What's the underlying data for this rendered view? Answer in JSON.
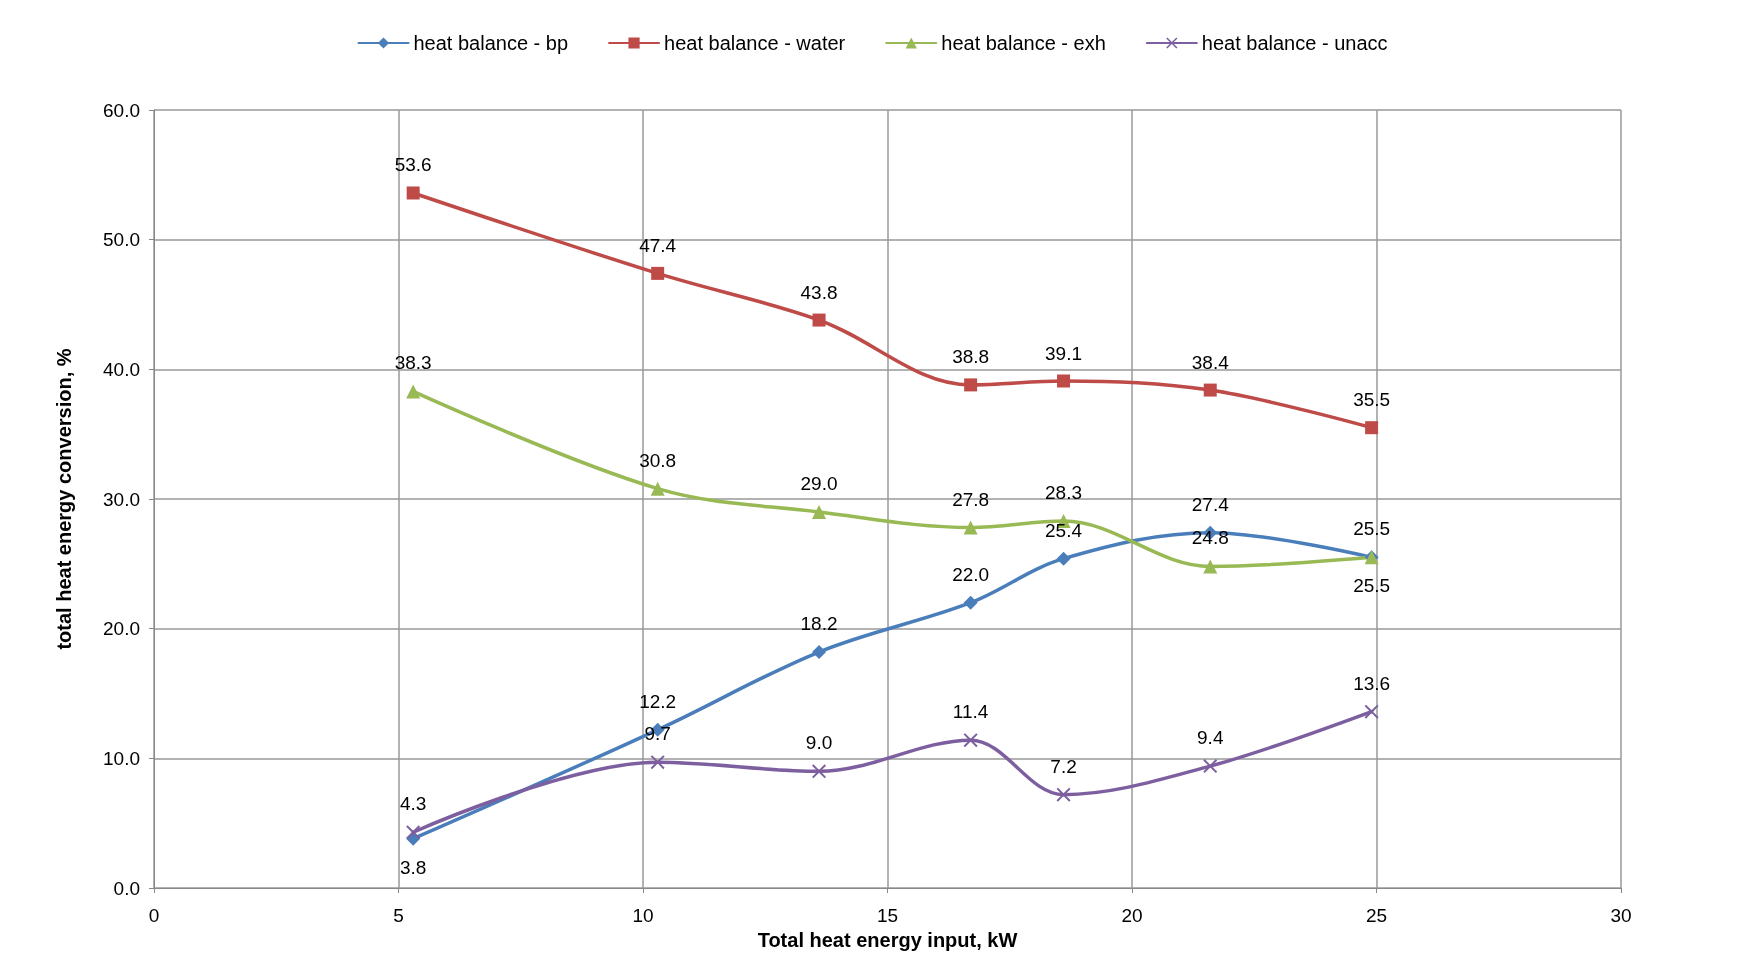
{
  "chart_data": {
    "type": "line",
    "xlabel": "Total heat energy input, kW",
    "ylabel": "total heat energy conversion, %",
    "x": [
      5.3,
      10.3,
      13.6,
      16.7,
      18.6,
      21.6,
      24.9
    ],
    "series": [
      {
        "name": "heat balance - bp",
        "color": "#4a7ebb",
        "marker": "diamond",
        "values": [
          3.8,
          12.2,
          18.2,
          22.0,
          25.4,
          27.4,
          25.5
        ],
        "value_labels": [
          "3.8",
          "12.2",
          "18.2",
          "22.0",
          "25.4",
          "27.4",
          "25.5"
        ]
      },
      {
        "name": "heat balance - water",
        "color": "#be4b48",
        "marker": "square",
        "values": [
          53.6,
          47.4,
          43.8,
          38.8,
          39.1,
          38.4,
          35.5
        ],
        "value_labels": [
          "53.6",
          "47.4",
          "43.8",
          "38.8",
          "39.1",
          "38.4",
          "35.5"
        ]
      },
      {
        "name": "heat balance - exh",
        "color": "#98b954",
        "marker": "triangle",
        "values": [
          38.3,
          30.8,
          29.0,
          27.8,
          28.3,
          24.8,
          25.5
        ],
        "value_labels": [
          "38.3",
          "30.8",
          "29.0",
          "27.8",
          "28.3",
          "24.8",
          "25.5"
        ]
      },
      {
        "name": "heat balance - unacc",
        "color": "#7d5fa0",
        "marker": "cross",
        "values": [
          4.3,
          9.7,
          9.0,
          11.4,
          7.2,
          9.4,
          13.6
        ],
        "value_labels": [
          "4.3",
          "9.7",
          "9.0",
          "11.4",
          "7.2",
          "9.4",
          "13.6"
        ]
      }
    ],
    "xlim": [
      0,
      30
    ],
    "xticks": [
      0,
      5,
      10,
      15,
      20,
      25,
      30
    ],
    "ylim": [
      0,
      60
    ],
    "yticks": [
      {
        "value": 0,
        "label": "0.0"
      },
      {
        "value": 10,
        "label": "10.0"
      },
      {
        "value": 20,
        "label": "20.0"
      },
      {
        "value": 30,
        "label": "30.0"
      },
      {
        "value": 40,
        "label": "40.0"
      },
      {
        "value": 50,
        "label": "50.0"
      },
      {
        "value": 60,
        "label": "60.0"
      }
    ],
    "grid": true,
    "legend": "top"
  }
}
